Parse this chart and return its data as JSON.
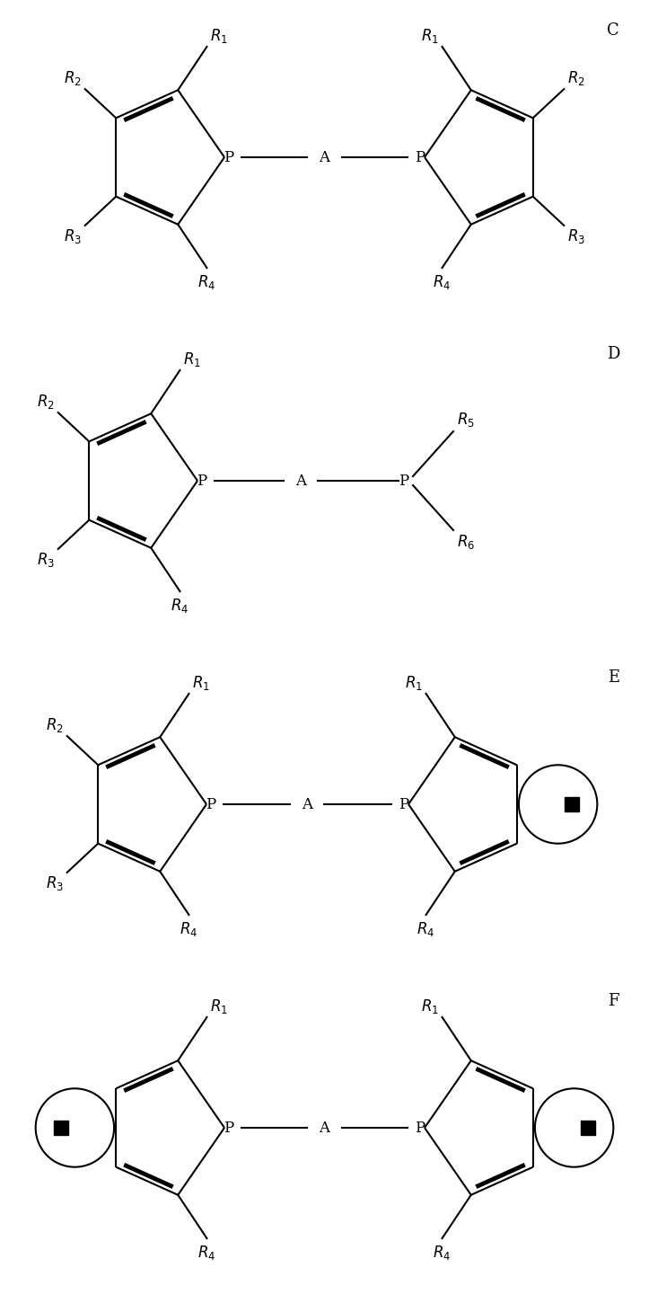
{
  "bg_color": "#ffffff",
  "line_color": "#000000",
  "lw": 1.5,
  "blw": 3.5,
  "fs": 12,
  "panels": [
    "C",
    "D",
    "E",
    "F"
  ]
}
